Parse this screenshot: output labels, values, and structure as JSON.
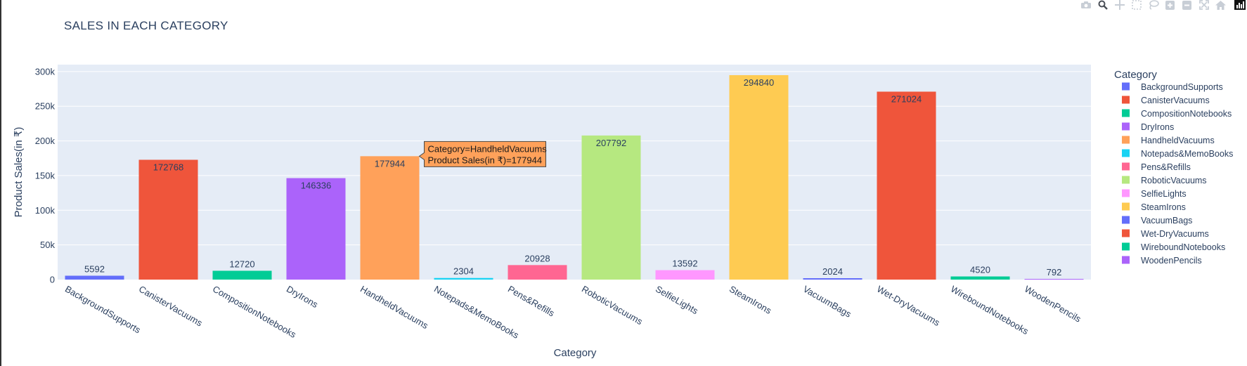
{
  "chart_data": {
    "type": "bar",
    "title": "SALES IN EACH CATEGORY",
    "xlabel": "Category",
    "ylabel": "Product Sales(in ₹)",
    "ylim": [
      0,
      310000
    ],
    "yticks": [
      0,
      50000,
      100000,
      150000,
      200000,
      250000,
      300000
    ],
    "ytick_labels": [
      "0",
      "50k",
      "100k",
      "150k",
      "200k",
      "250k",
      "300k"
    ],
    "grid": true,
    "legend_title": "Category",
    "legend_position": "right",
    "categories": [
      "BackgroundSupports",
      "CanisterVacuums",
      "CompositionNotebooks",
      "DryIrons",
      "HandheldVacuums",
      "Notepads&MemoBooks",
      "Pens&Refills",
      "RoboticVacuums",
      "SelfieLights",
      "SteamIrons",
      "VacuumBags",
      "Wet-DryVacuums",
      "WireboundNotebooks",
      "WoodenPencils"
    ],
    "values": [
      5592,
      172768,
      12720,
      146336,
      177944,
      2304,
      20928,
      207792,
      13592,
      294840,
      2024,
      271024,
      4520,
      792
    ],
    "colors": [
      "#636efa",
      "#EF553B",
      "#00cc96",
      "#ab63fa",
      "#FFA15A",
      "#19d3f3",
      "#FF6692",
      "#B6E880",
      "#FF97FF",
      "#FECB52",
      "#636efa",
      "#EF553B",
      "#00cc96",
      "#ab63fa"
    ],
    "tooltip": {
      "category_index": 4,
      "line1": "Category=HandheldVacuums",
      "line2": "Product Sales(in ₹)=177944"
    }
  },
  "toolbar": {
    "icons": [
      "camera-icon",
      "zoom-icon",
      "pan-icon",
      "box-select-icon",
      "lasso-select-icon",
      "zoom-in-icon",
      "zoom-out-icon",
      "autoscale-icon",
      "reset-axes-icon",
      "plotly-logo-icon"
    ]
  }
}
